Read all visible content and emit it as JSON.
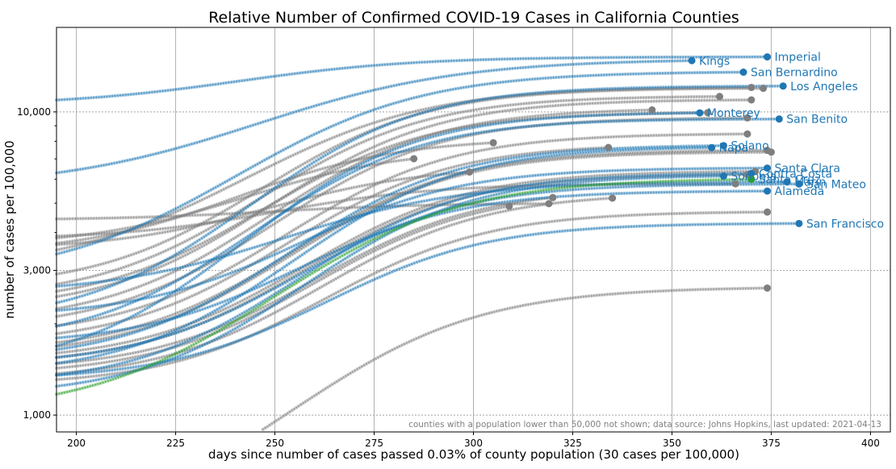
{
  "chart_data": {
    "type": "line",
    "title": "Relative Number of Confirmed COVID-19 Cases in California Counties",
    "xlabel": "days since number of cases passed 0.03% of county population (30 cases per 100,000)",
    "ylabel": "number of cases per 100,000",
    "y_scale": "log",
    "xlim": [
      195,
      405
    ],
    "ylim": [
      880,
      19000
    ],
    "x_ticks": [
      200,
      225,
      250,
      275,
      300,
      325,
      350,
      375,
      400
    ],
    "y_ticks": [
      1000,
      3000,
      10000
    ],
    "y_tick_labels": [
      "1,000",
      "3,000",
      "10,000"
    ],
    "grid": true,
    "note": "counties with a population lower than 50,000 not shown; data source: Johns Hopkins, last updated: 2021-04-13",
    "colors": {
      "highlight": "#1f77b4",
      "other": "#7f7f7f",
      "santa_cruz": "#2ca02c"
    },
    "series": [
      {
        "name": "Imperial",
        "group": "highlight",
        "start": 10500,
        "plateau": 15200,
        "mid": 245,
        "k": 0.045,
        "end_x": 374
      },
      {
        "name": "Kings",
        "group": "highlight",
        "start": 5600,
        "plateau": 14950,
        "mid": 258,
        "k": 0.04,
        "end_x": 355
      },
      {
        "name": "San Bernardino",
        "group": "highlight",
        "start": 2800,
        "plateau": 13600,
        "mid": 258,
        "k": 0.045,
        "end_x": 368
      },
      {
        "name": "Los Angeles",
        "group": "highlight",
        "start": 2000,
        "plateau": 12200,
        "mid": 262,
        "k": 0.05,
        "end_x": 378
      },
      {
        "name": "Monterey",
        "group": "highlight",
        "start": 1400,
        "plateau": 10000,
        "mid": 262,
        "k": 0.05,
        "end_x": 357
      },
      {
        "name": "San Benito",
        "group": "highlight",
        "start": 1700,
        "plateau": 9500,
        "mid": 262,
        "k": 0.05,
        "end_x": 377
      },
      {
        "name": "Solano",
        "group": "highlight",
        "start": 1500,
        "plateau": 7800,
        "mid": 270,
        "k": 0.05,
        "end_x": 363
      },
      {
        "name": "Napa",
        "group": "highlight",
        "start": 1350,
        "plateau": 7700,
        "mid": 272,
        "k": 0.05,
        "end_x": 360
      },
      {
        "name": "Contra Costa",
        "group": "highlight",
        "start": 1250,
        "plateau": 6300,
        "mid": 272,
        "k": 0.05,
        "end_x": 370
      },
      {
        "name": "Sonoma",
        "group": "highlight",
        "start": 1150,
        "plateau": 6200,
        "mid": 274,
        "k": 0.05,
        "end_x": 363
      },
      {
        "name": "Santa Clara",
        "group": "highlight",
        "start": 2100,
        "plateau": 6550,
        "mid": 268,
        "k": 0.05,
        "end_x": 374
      },
      {
        "name": "San Mateo",
        "group": "highlight",
        "start": 1450,
        "plateau": 5800,
        "mid": 270,
        "k": 0.05,
        "end_x": 382
      },
      {
        "name": "Marin",
        "group": "highlight",
        "start": 2500,
        "plateau": 5900,
        "mid": 262,
        "k": 0.045,
        "end_x": 379
      },
      {
        "name": "Alameda",
        "group": "highlight",
        "start": 1700,
        "plateau": 5500,
        "mid": 268,
        "k": 0.05,
        "end_x": 374
      },
      {
        "name": "Santa Cruz",
        "group": "santa_cruz",
        "start": 1005,
        "plateau": 6050,
        "mid": 270,
        "k": 0.045,
        "end_x": 370
      },
      {
        "name": "San Francisco",
        "group": "highlight",
        "start": 1300,
        "plateau": 4300,
        "mid": 275,
        "k": 0.05,
        "end_x": 382
      },
      {
        "group": "other",
        "start": 3000,
        "plateau": 12100,
        "mid": 258,
        "k": 0.045,
        "end_x": 370
      },
      {
        "group": "other",
        "start": 2600,
        "plateau": 12000,
        "mid": 262,
        "k": 0.05,
        "end_x": 373
      },
      {
        "group": "other",
        "start": 2400,
        "plateau": 11300,
        "mid": 262,
        "k": 0.05,
        "end_x": 362
      },
      {
        "group": "other",
        "start": 2200,
        "plateau": 11000,
        "mid": 265,
        "k": 0.05,
        "end_x": 370
      },
      {
        "group": "other",
        "start": 2000,
        "plateau": 10300,
        "mid": 265,
        "k": 0.05,
        "end_x": 345
      },
      {
        "group": "other",
        "start": 2300,
        "plateau": 10000,
        "mid": 262,
        "k": 0.05,
        "end_x": 359
      },
      {
        "group": "other",
        "start": 1900,
        "plateau": 9600,
        "mid": 266,
        "k": 0.05,
        "end_x": 369
      },
      {
        "group": "other",
        "start": 1800,
        "plateau": 8500,
        "mid": 268,
        "k": 0.05,
        "end_x": 369
      },
      {
        "group": "other",
        "start": 3400,
        "plateau": 8200,
        "mid": 250,
        "k": 0.05,
        "end_x": 305
      },
      {
        "group": "other",
        "start": 1700,
        "plateau": 7850,
        "mid": 268,
        "k": 0.05,
        "end_x": 334
      },
      {
        "group": "other",
        "start": 3600,
        "plateau": 7600,
        "mid": 250,
        "k": 0.05,
        "end_x": 285
      },
      {
        "group": "other",
        "start": 1600,
        "plateau": 7500,
        "mid": 270,
        "k": 0.05,
        "end_x": 374
      },
      {
        "group": "other",
        "start": 1550,
        "plateau": 7400,
        "mid": 270,
        "k": 0.05,
        "end_x": 375
      },
      {
        "group": "other",
        "start": 3500,
        "plateau": 6650,
        "mid": 255,
        "k": 0.05,
        "end_x": 299
      },
      {
        "group": "other",
        "start": 1500,
        "plateau": 6400,
        "mid": 272,
        "k": 0.05,
        "end_x": 371
      },
      {
        "group": "other",
        "start": 1450,
        "plateau": 6250,
        "mid": 272,
        "k": 0.05,
        "end_x": 369
      },
      {
        "group": "other",
        "start": 3800,
        "plateau": 5800,
        "mid": 255,
        "k": 0.05,
        "end_x": 366
      },
      {
        "group": "other",
        "start": 1400,
        "plateau": 5600,
        "mid": 274,
        "k": 0.05,
        "end_x": 320
      },
      {
        "group": "other",
        "start": 1350,
        "plateau": 5500,
        "mid": 274,
        "k": 0.05,
        "end_x": 309
      },
      {
        "group": "other",
        "start": 1300,
        "plateau": 5400,
        "mid": 276,
        "k": 0.05,
        "end_x": 335
      },
      {
        "group": "other",
        "start": 4400,
        "plateau": 5000,
        "mid": 250,
        "k": 0.05,
        "end_x": 319
      },
      {
        "group": "other",
        "start": 1250,
        "plateau": 4700,
        "mid": 276,
        "k": 0.05,
        "end_x": 374
      },
      {
        "group": "other",
        "start": 400,
        "plateau": 2650,
        "mid": 275,
        "k": 0.045,
        "end_x": 374
      }
    ]
  }
}
